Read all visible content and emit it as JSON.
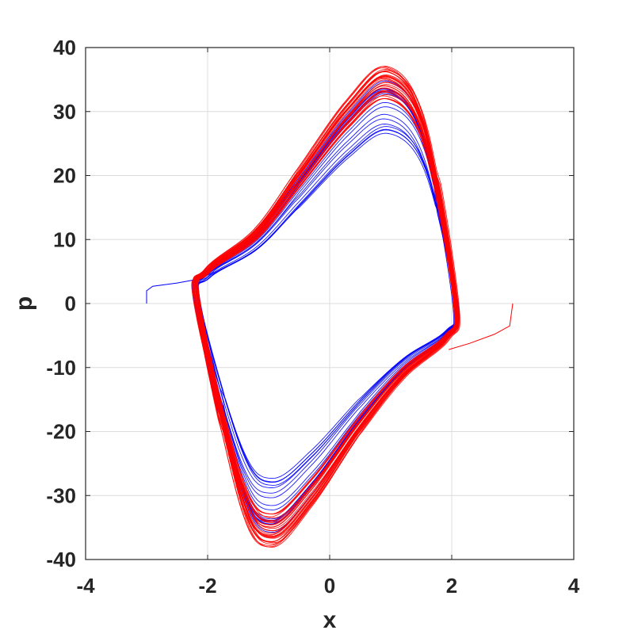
{
  "chart_data": {
    "type": "line",
    "title": "",
    "xlabel": "x",
    "ylabel": "p",
    "xlim": [
      -4,
      4
    ],
    "ylim": [
      -40,
      40
    ],
    "xticks": [
      -4,
      -2,
      0,
      2,
      4
    ],
    "yticks": [
      -40,
      -30,
      -20,
      -10,
      0,
      10,
      20,
      30,
      40
    ],
    "xtick_labels": [
      "-4",
      "-2",
      "0",
      "2",
      "4"
    ],
    "ytick_labels": [
      "-40",
      "-30",
      "-20",
      "-10",
      "0",
      "10",
      "20",
      "30",
      "40"
    ],
    "grid": true,
    "series": [
      {
        "color": "#0000ff",
        "start": [
          -3,
          0
        ],
        "transient": [
          [
            -3,
            0
          ],
          [
            -3,
            2
          ],
          [
            -2.9,
            2.7
          ],
          [
            -2.5,
            3.2
          ],
          [
            -2.1,
            3.9
          ],
          [
            -1.9,
            5
          ]
        ],
        "cycle_amplitude_range": [
          0.7,
          0.98
        ],
        "cycles": 18
      },
      {
        "color": "#ff0000",
        "start": [
          3,
          0
        ],
        "transient": [
          [
            3,
            0
          ],
          [
            2.95,
            -3.5
          ],
          [
            2.7,
            -4.8
          ],
          [
            2.3,
            -6.2
          ],
          [
            1.95,
            -7.2
          ]
        ],
        "cycle_amplitude_range": [
          0.9,
          1.05
        ],
        "cycles": 32
      }
    ],
    "attractor_shape": [
      [
        -2.15,
        -0.1
      ],
      [
        -2.0,
        5.2
      ],
      [
        -1.2,
        11.2
      ],
      [
        -0.5,
        20.2
      ],
      [
        0.3,
        30.5
      ],
      [
        0.95,
        35.5
      ],
      [
        1.55,
        27.5
      ],
      [
        2.05,
        0.2
      ],
      [
        1.9,
        -5.5
      ],
      [
        1.2,
        -11.2
      ],
      [
        0.5,
        -19.5
      ],
      [
        -0.3,
        -30.5
      ],
      [
        -0.95,
        -36.5
      ],
      [
        -1.45,
        -30.0
      ],
      [
        -2.15,
        -0.1
      ]
    ]
  }
}
